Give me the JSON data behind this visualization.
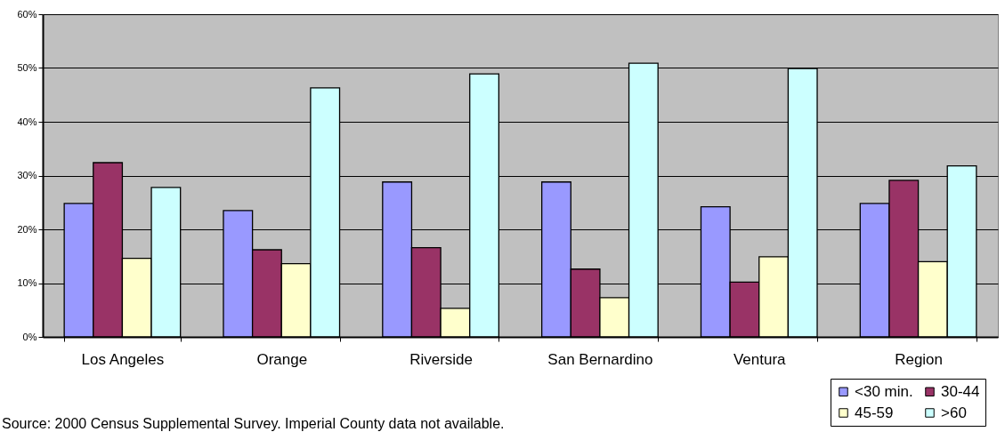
{
  "chart_data": {
    "type": "bar",
    "categories": [
      "Los Angeles",
      "Orange",
      "Riverside",
      "San Bernardino",
      "Ventura",
      "Region"
    ],
    "series": [
      {
        "name": "<30 min.",
        "color": "#9999ff",
        "values": [
          0.248,
          0.235,
          0.288,
          0.288,
          0.242,
          0.248
        ]
      },
      {
        "name": "30-44",
        "color": "#993366",
        "values": [
          0.324,
          0.162,
          0.166,
          0.126,
          0.102,
          0.291
        ]
      },
      {
        "name": "45-59",
        "color": "#ffffcc",
        "values": [
          0.146,
          0.136,
          0.053,
          0.073,
          0.149,
          0.14
        ]
      },
      {
        "name": ">60",
        "color": "#ccffff",
        "values": [
          0.278,
          0.463,
          0.489,
          0.509,
          0.499,
          0.318
        ]
      }
    ],
    "ylim": [
      0,
      0.6
    ],
    "yticks": [
      {
        "value": 0,
        "label": "0%"
      },
      {
        "value": 0.1,
        "label": "10%"
      },
      {
        "value": 0.2,
        "label": "20%"
      },
      {
        "value": 0.3,
        "label": "30%"
      },
      {
        "value": 0.4,
        "label": "40%"
      },
      {
        "value": 0.5,
        "label": "50%"
      },
      {
        "value": 0.6,
        "label": "60%"
      }
    ],
    "grid": "y",
    "legend": "bottom right",
    "annotations": [
      "Source: 2000 Census Supplemental Survey.  Imperial County data not available."
    ]
  }
}
